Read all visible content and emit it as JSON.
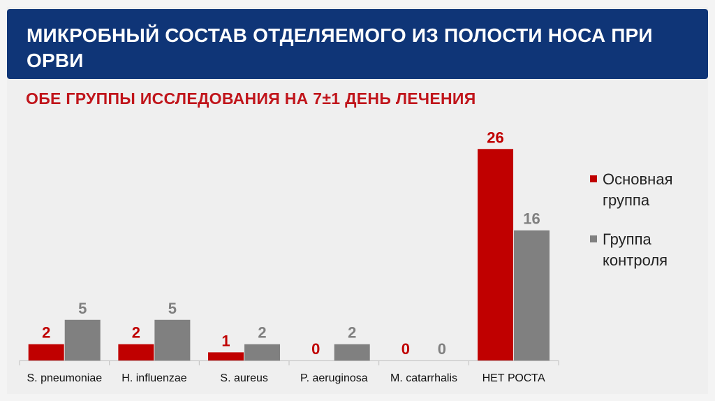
{
  "slide": {
    "title": "МИКРОБНЫЙ СОСТАВ ОТДЕЛЯЕМОГО ИЗ ПОЛОСТИ НОСА ПРИ ОРВИ",
    "subtitle": "ОБЕ ГРУППЫ ИССЛЕДОВАНИЯ НА 7±1 ДЕНЬ ЛЕЧЕНИЯ"
  },
  "colors": {
    "title_bg": "#0f3577",
    "main_series": "#c00000",
    "control_series": "#808080",
    "subtitle": "#c0151b"
  },
  "chart_data": {
    "type": "bar",
    "categories": [
      "S. pneumoniae",
      "H. influenzae",
      "S. aureus",
      "P. aeruginosa",
      "M. catarrhalis",
      "НЕТ РОСТА"
    ],
    "series": [
      {
        "name": "Основная группа",
        "color": "#c00000",
        "values": [
          2,
          2,
          1,
          0,
          0,
          26
        ]
      },
      {
        "name": "Группа контроля",
        "color": "#808080",
        "values": [
          5,
          5,
          2,
          2,
          0,
          16
        ]
      }
    ],
    "ylim": [
      0,
      28
    ],
    "legend_position": "right",
    "grid": false,
    "data_labels": true
  }
}
